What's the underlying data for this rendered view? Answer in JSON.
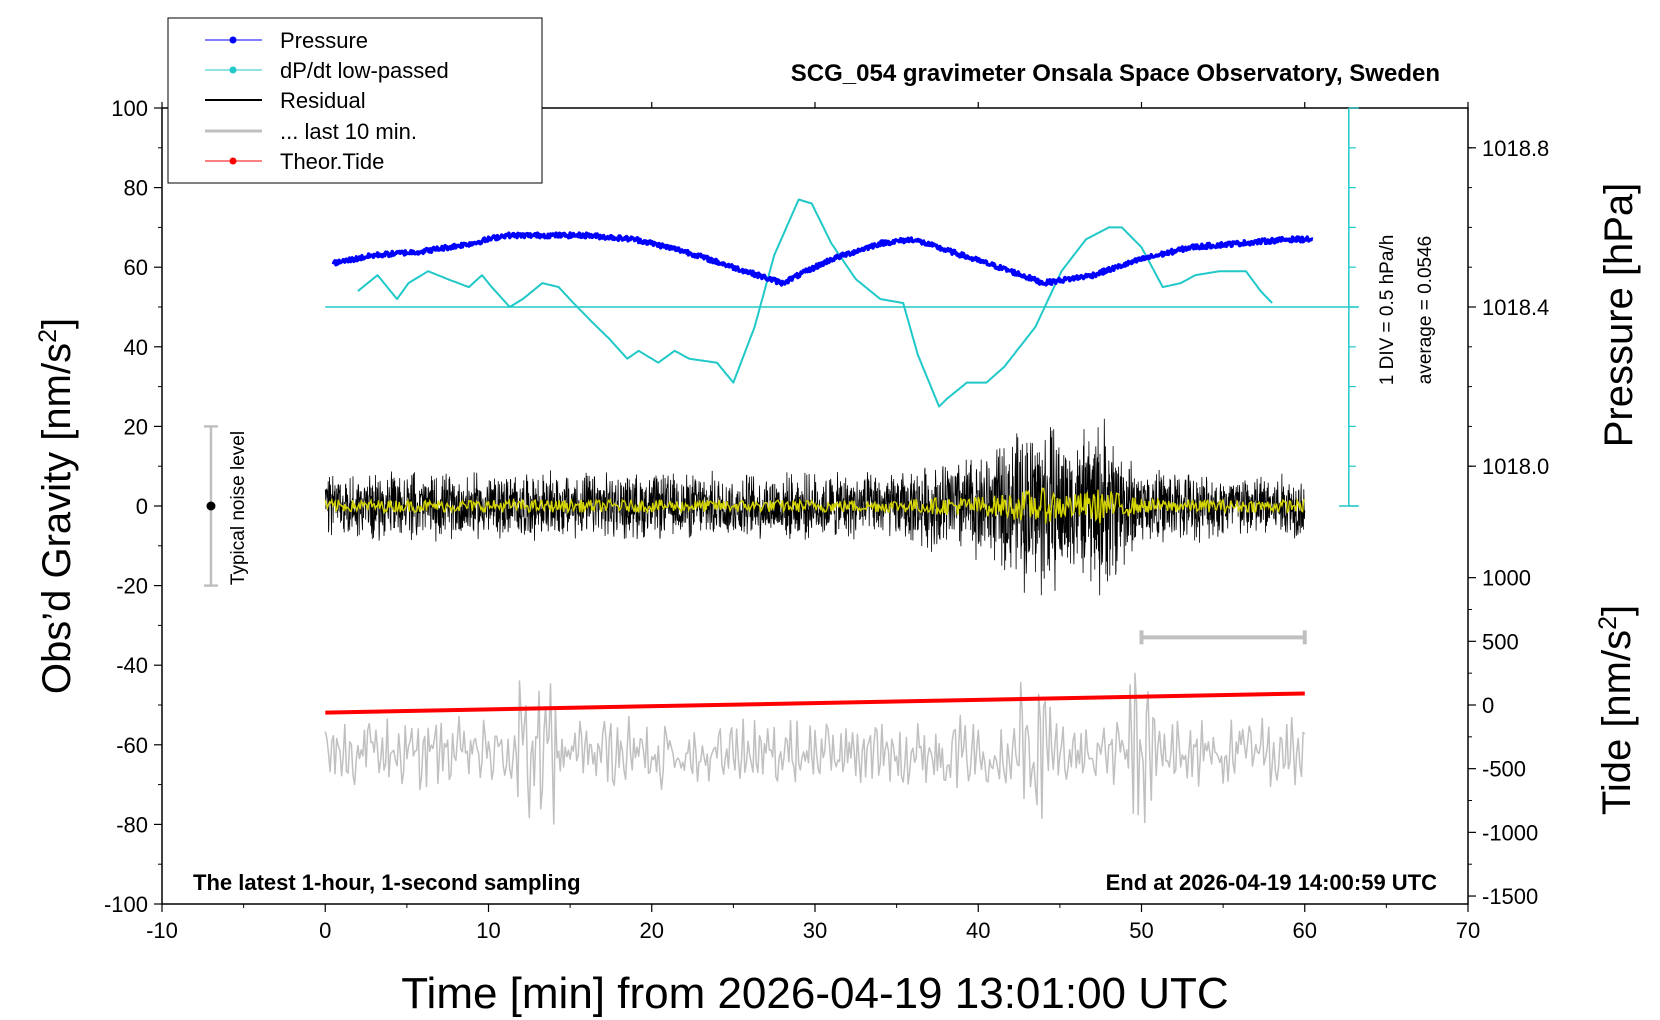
{
  "chart_data": {
    "type": "line",
    "title": "SCG_054 gravimeter Onsala Space Observatory, Sweden",
    "xlabel": "Time [min] from 2026-04-19 13:01:00 UTC",
    "ylabel_left": "Obs’d Gravity [nm/s",
    "ylabel_left_sup": "2",
    "ylabel_left_end": "]",
    "ylabel_right_pressure": "Pressure [hPa]",
    "ylabel_right_tide": "Tide [nm/s",
    "ylabel_right_tide_sup": "2",
    "ylabel_right_tide_end": "]",
    "xlim": [
      -10,
      70
    ],
    "ylim": [
      -100,
      100
    ],
    "x_ticks": [
      -10,
      0,
      10,
      20,
      30,
      40,
      50,
      60,
      70
    ],
    "y_ticks": [
      -100,
      -80,
      -60,
      -40,
      -20,
      0,
      20,
      40,
      60,
      80,
      100
    ],
    "pressure_ticks": [
      "1018.8",
      "1018.4",
      "1018.0"
    ],
    "tide_ticks": [
      "1000",
      "500",
      "0",
      "-500",
      "-1000",
      "-1500"
    ],
    "legend": {
      "position": "top-left",
      "entries": [
        "Pressure",
        "dP/dt low-passed",
        "Residual",
        "... last 10 min.",
        "Theor.Tide"
      ]
    },
    "annotations": {
      "bottom_left": "The latest 1-hour, 1-second sampling",
      "bottom_right": "End at 2026-04-19 14:00:59 UTC",
      "noise": "Typical noise level",
      "div": "1 DIV = 0.5 hPa/h",
      "average": "average = 0.0546"
    },
    "noise_level": {
      "x": -7,
      "center": 0,
      "range": [
        -20,
        20
      ]
    },
    "ten_min_bar": {
      "x_range": [
        50,
        60
      ],
      "y": -33
    },
    "series": [
      {
        "name": "Pressure",
        "axis": "pressure_hPa",
        "x": [
          0.5,
          3,
          6,
          9,
          11,
          14,
          16,
          19,
          22,
          25,
          28,
          31,
          34,
          36,
          39,
          42,
          44,
          47,
          50,
          53,
          56,
          59,
          60.5
        ],
        "y": [
          1018.51,
          1018.53,
          1018.54,
          1018.56,
          1018.58,
          1018.58,
          1018.58,
          1018.57,
          1018.54,
          1018.5,
          1018.46,
          1018.52,
          1018.56,
          1018.57,
          1018.53,
          1018.49,
          1018.46,
          1018.48,
          1018.52,
          1018.55,
          1018.56,
          1018.57,
          1018.57
        ]
      },
      {
        "name": "dP/dt low-passed",
        "axis": "gravity_nm_s2",
        "x": [
          2,
          3.2,
          4.4,
          5.1,
          6.3,
          7.5,
          8.8,
          9.6,
          10.2,
          11.3,
          12.1,
          13.3,
          14.3,
          15.2,
          16.4,
          17.4,
          18.5,
          19.2,
          20.4,
          21.4,
          22.3,
          24,
          25,
          26.3,
          27.5,
          29,
          29.8,
          31,
          32.5,
          34,
          35.4,
          36.3,
          37.6,
          38.1,
          39.3,
          40.5,
          41.6,
          43.5,
          45.1,
          46.6,
          48,
          48.8,
          50,
          51.3,
          52.4,
          53.3,
          54.8,
          56.4,
          57.3,
          58
        ],
        "y": [
          54,
          58,
          52,
          56,
          59,
          57,
          55,
          58,
          55,
          50,
          52,
          56,
          55,
          51,
          46,
          42,
          37,
          39,
          36,
          39,
          37,
          36,
          31,
          45,
          63,
          77,
          76,
          66,
          57,
          52,
          51,
          38,
          25,
          27,
          31,
          31,
          35,
          45,
          59,
          67,
          70,
          70,
          65,
          55,
          56,
          58,
          59,
          59,
          54,
          51
        ]
      },
      {
        "name": "Residual",
        "axis": "gravity_nm_s2",
        "envelope_x": [
          0,
          5,
          10,
          15,
          20,
          25,
          30,
          35,
          38,
          41,
          43,
          44,
          46,
          47.5,
          50,
          55,
          60
        ],
        "envelope_y": [
          7,
          7,
          7,
          7,
          7,
          7,
          7,
          7,
          10,
          12,
          18,
          20,
          14,
          20,
          8,
          7,
          7
        ]
      },
      {
        "name": "... last 10 min.",
        "axis": "gravity_nm_s2",
        "x_range": [
          0,
          60
        ],
        "y_mean": -62
      },
      {
        "name": "Theor.Tide",
        "axis": "tide_nm_s2",
        "x": [
          0,
          60
        ],
        "y": [
          -60,
          90
        ]
      }
    ],
    "colors": {
      "pressure": "#0000ff",
      "dpdt": "#20c8c8",
      "residual": "#000000",
      "residual_smooth": "#d4d400",
      "last10": "#c0c0c0",
      "tide": "#ff0000",
      "noise": "#c0c0c0"
    }
  }
}
